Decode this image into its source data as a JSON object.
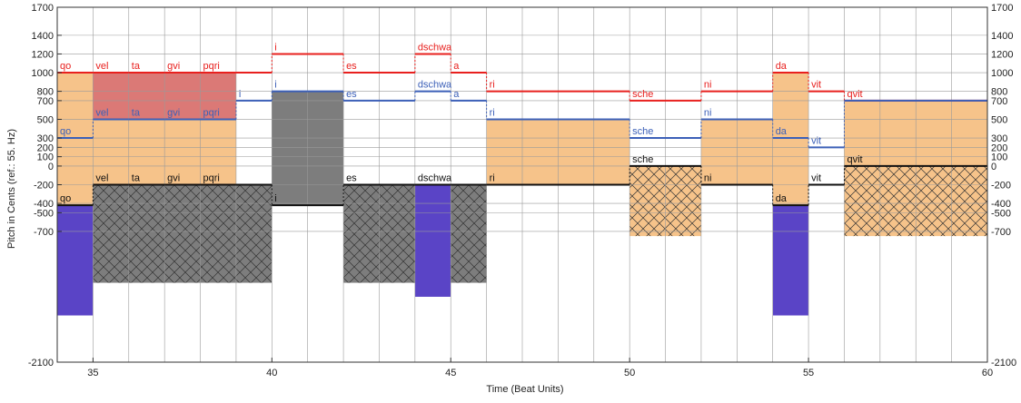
{
  "chart_data": {
    "type": "step-area",
    "xlabel": "Time (Beat Units)",
    "ylabel": "Pitch in Cents (ref.: 55. Hz)",
    "xlim": [
      34,
      60
    ],
    "ylim": [
      -2100,
      1700
    ],
    "x_ticks": [
      35,
      40,
      45,
      50,
      55,
      60
    ],
    "y_ticks": [
      1700,
      1400,
      1200,
      1000,
      800,
      700,
      500,
      300,
      200,
      100,
      0,
      -200,
      -400,
      -500,
      -700,
      -2100
    ],
    "colors": {
      "red": "#e8201e",
      "red_fill": "#d9726f",
      "blue": "#3c60b8",
      "black": "#111111",
      "orange_fill": "#f6c38a",
      "gray_fill": "#7d7d7d",
      "purple_fill": "#5a44c6",
      "grid": "#9a9a9a"
    },
    "gray_blocks": [
      {
        "x0": 35,
        "x1": 39,
        "top": -200,
        "bottom": -1250,
        "hatch": true
      },
      {
        "x0": 39,
        "x1": 40,
        "top": -200,
        "bottom": -1250,
        "hatch": true
      },
      {
        "x0": 40,
        "x1": 42,
        "top": 800,
        "bottom": -420,
        "hatch": false
      },
      {
        "x0": 42,
        "x1": 44,
        "top": -200,
        "bottom": -1250,
        "hatch": true
      },
      {
        "x0": 45,
        "x1": 46,
        "top": -200,
        "bottom": -1250,
        "hatch": true
      }
    ],
    "purple_blocks": [
      {
        "x0": 34,
        "x1": 35,
        "top": -420,
        "bottom": -1600
      },
      {
        "x0": 44,
        "x1": 45,
        "top": -200,
        "bottom": -1400
      },
      {
        "x0": 54,
        "x1": 55,
        "top": -420,
        "bottom": -1600
      }
    ],
    "orange_blocks": [
      {
        "x0": 34,
        "x1": 35,
        "top": 1000,
        "bottom": -420,
        "hatch": false
      },
      {
        "x0": 35,
        "x1": 39,
        "top": 500,
        "bottom": -200,
        "hatch": false
      },
      {
        "x0": 46,
        "x1": 50,
        "top": 500,
        "bottom": -200,
        "hatch": false
      },
      {
        "x0": 50,
        "x1": 52,
        "top": 0,
        "bottom": -750,
        "hatch": true
      },
      {
        "x0": 52,
        "x1": 54,
        "top": 500,
        "bottom": -200,
        "hatch": false
      },
      {
        "x0": 54,
        "x1": 55,
        "top": 1000,
        "bottom": -420,
        "hatch": false
      },
      {
        "x0": 56,
        "x1": 60,
        "top": 700,
        "bottom": 0,
        "hatch": false
      },
      {
        "x0": 56,
        "x1": 60,
        "top": 0,
        "bottom": -750,
        "hatch": true
      }
    ],
    "red_fill_blocks": [
      {
        "x0": 35,
        "x1": 39,
        "top": 1000,
        "bottom": 500
      }
    ],
    "red_line": [
      {
        "x0": 34,
        "x1": 35,
        "y": 1000,
        "label": "qo"
      },
      {
        "x0": 35,
        "x1": 36,
        "y": 1000,
        "label": "vel"
      },
      {
        "x0": 36,
        "x1": 37,
        "y": 1000,
        "label": "ta"
      },
      {
        "x0": 37,
        "x1": 38,
        "y": 1000,
        "label": "gvi"
      },
      {
        "x0": 38,
        "x1": 39,
        "y": 1000,
        "label": "pqri"
      },
      {
        "x0": 39,
        "x1": 40,
        "y": 1000,
        "label": ""
      },
      {
        "x0": 40,
        "x1": 42,
        "y": 1200,
        "label": "i"
      },
      {
        "x0": 42,
        "x1": 44,
        "y": 1000,
        "label": "es"
      },
      {
        "x0": 44,
        "x1": 45,
        "y": 1200,
        "label": "dschwa"
      },
      {
        "x0": 45,
        "x1": 46,
        "y": 1000,
        "label": "a"
      },
      {
        "x0": 46,
        "x1": 50,
        "y": 800,
        "label": "ri"
      },
      {
        "x0": 50,
        "x1": 52,
        "y": 700,
        "label": "sche"
      },
      {
        "x0": 52,
        "x1": 54,
        "y": 800,
        "label": "ni"
      },
      {
        "x0": 54,
        "x1": 55,
        "y": 1000,
        "label": "da"
      },
      {
        "x0": 55,
        "x1": 56,
        "y": 800,
        "label": "vit"
      },
      {
        "x0": 56,
        "x1": 60,
        "y": 700,
        "label": "qvit"
      }
    ],
    "blue_line": [
      {
        "x0": 34,
        "x1": 35,
        "y": 300,
        "label": "qo"
      },
      {
        "x0": 35,
        "x1": 36,
        "y": 500,
        "label": "vel"
      },
      {
        "x0": 36,
        "x1": 37,
        "y": 500,
        "label": "ta"
      },
      {
        "x0": 37,
        "x1": 38,
        "y": 500,
        "label": "gvi"
      },
      {
        "x0": 38,
        "x1": 39,
        "y": 500,
        "label": "pqri"
      },
      {
        "x0": 39,
        "x1": 40,
        "y": 700,
        "label": "i"
      },
      {
        "x0": 40,
        "x1": 42,
        "y": 800,
        "label": "i"
      },
      {
        "x0": 42,
        "x1": 44,
        "y": 700,
        "label": "es"
      },
      {
        "x0": 44,
        "x1": 45,
        "y": 800,
        "label": "dschwa"
      },
      {
        "x0": 45,
        "x1": 46,
        "y": 700,
        "label": "a"
      },
      {
        "x0": 46,
        "x1": 50,
        "y": 500,
        "label": "ri"
      },
      {
        "x0": 50,
        "x1": 52,
        "y": 300,
        "label": "sche"
      },
      {
        "x0": 52,
        "x1": 54,
        "y": 500,
        "label": "ni"
      },
      {
        "x0": 54,
        "x1": 55,
        "y": 300,
        "label": "da"
      },
      {
        "x0": 55,
        "x1": 56,
        "y": 200,
        "label": "vit"
      },
      {
        "x0": 56,
        "x1": 60,
        "y": 700,
        "label": ""
      }
    ],
    "black_line": [
      {
        "x0": 34,
        "x1": 35,
        "y": -420,
        "label": "qo"
      },
      {
        "x0": 35,
        "x1": 36,
        "y": -200,
        "label": "vel"
      },
      {
        "x0": 36,
        "x1": 37,
        "y": -200,
        "label": "ta"
      },
      {
        "x0": 37,
        "x1": 38,
        "y": -200,
        "label": "gvi"
      },
      {
        "x0": 38,
        "x1": 39,
        "y": -200,
        "label": "pqri"
      },
      {
        "x0": 39,
        "x1": 40,
        "y": -200,
        "label": ""
      },
      {
        "x0": 40,
        "x1": 42,
        "y": -420,
        "label": "i"
      },
      {
        "x0": 42,
        "x1": 44,
        "y": -200,
        "label": "es"
      },
      {
        "x0": 44,
        "x1": 45,
        "y": -200,
        "label": "dschwa"
      },
      {
        "x0": 45,
        "x1": 46,
        "y": -200,
        "label": ""
      },
      {
        "x0": 46,
        "x1": 50,
        "y": -200,
        "label": "ri"
      },
      {
        "x0": 50,
        "x1": 52,
        "y": 0,
        "label": "sche"
      },
      {
        "x0": 52,
        "x1": 54,
        "y": -200,
        "label": "ni"
      },
      {
        "x0": 54,
        "x1": 55,
        "y": -420,
        "label": "da"
      },
      {
        "x0": 55,
        "x1": 56,
        "y": -200,
        "label": "vit"
      },
      {
        "x0": 56,
        "x1": 60,
        "y": 0,
        "label": "qvit"
      }
    ]
  }
}
